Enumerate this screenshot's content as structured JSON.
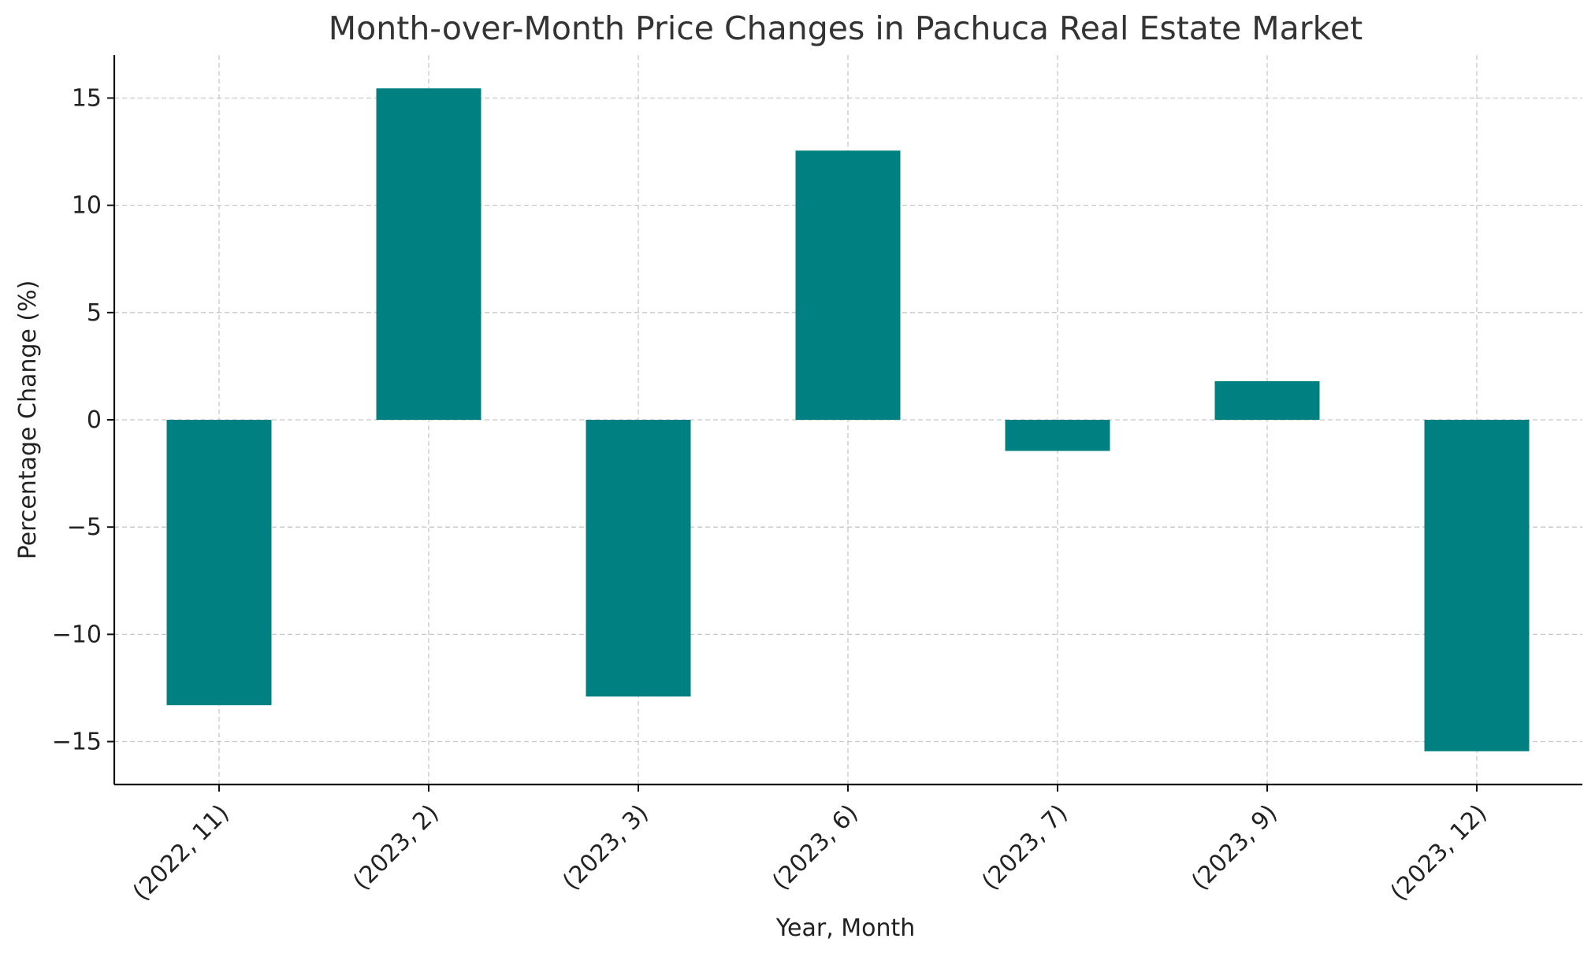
{
  "chart_data": {
    "type": "bar",
    "title": "Month-over-Month Price Changes in Pachuca Real Estate Market",
    "xlabel": "Year, Month",
    "ylabel": "Percentage Change (%)",
    "categories": [
      "(2022, 11)",
      "(2023, 2)",
      "(2023, 3)",
      "(2023, 6)",
      "(2023, 7)",
      "(2023, 9)",
      "(2023, 12)"
    ],
    "values": [
      -13.3,
      15.45,
      -12.9,
      12.55,
      -1.45,
      1.8,
      -15.45
    ],
    "ylim": [
      -17,
      17
    ],
    "yticks": [
      -15,
      -10,
      -5,
      0,
      5,
      10,
      15
    ],
    "ytick_labels": [
      "−15",
      "−10",
      "−5",
      "0",
      "5",
      "10",
      "15"
    ],
    "bar_color": "#008080",
    "grid": true
  }
}
